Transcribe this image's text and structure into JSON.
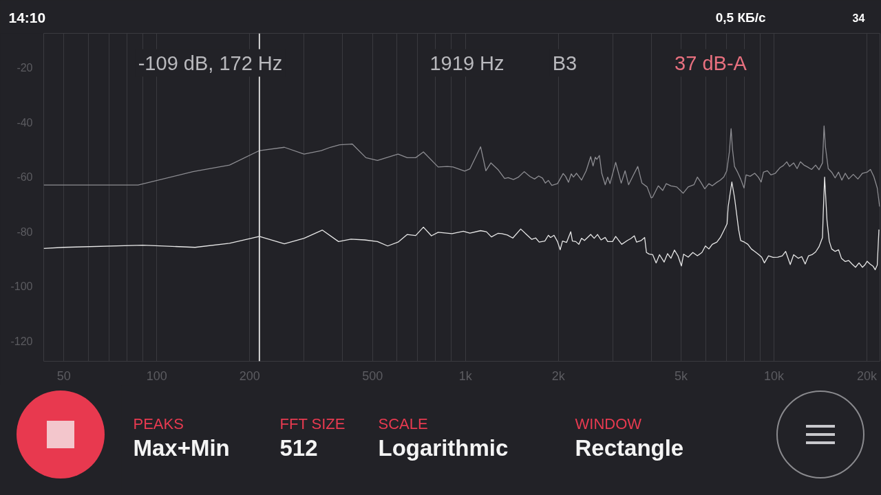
{
  "chart_data": {
    "type": "line",
    "log": "x",
    "grid": "x",
    "xlim": [
      43,
      22050
    ],
    "ylim": [
      -127.5,
      -7.5
    ],
    "xticks": [
      50,
      {
        "value": 60,
        "label": null
      },
      {
        "value": 70,
        "label": null
      },
      {
        "value": 80,
        "label": null
      },
      {
        "value": 90,
        "label": null
      },
      100,
      200,
      {
        "value": 300,
        "label": null
      },
      {
        "value": 400,
        "label": null
      },
      500,
      {
        "value": 600,
        "label": null
      },
      {
        "value": 700,
        "label": null
      },
      {
        "value": 800,
        "label": null
      },
      {
        "value": 900,
        "label": null
      },
      {
        "value": 1000,
        "label": "1k"
      },
      {
        "value": 2000,
        "label": "2k"
      },
      {
        "value": 3000,
        "label": null
      },
      {
        "value": 4000,
        "label": null
      },
      {
        "value": 5000,
        "label": "5k"
      },
      {
        "value": 6000,
        "label": null
      },
      {
        "value": 7000,
        "label": null
      },
      {
        "value": 8000,
        "label": null
      },
      {
        "value": 9000,
        "label": null
      },
      {
        "value": 10000,
        "label": "10k"
      },
      {
        "value": 20000,
        "label": "20k"
      }
    ],
    "yticks": [
      -120,
      -100,
      -80,
      -60,
      -40,
      -20
    ],
    "ref_lines": [
      {
        "axis": "x",
        "value": 215,
        "color": "#d6d6d6"
      }
    ],
    "annotations": [
      "14:10",
      "0,5 КБ/с",
      "34",
      "-109 dB, 172 Hz",
      "1919 Hz",
      "B3",
      "37 dB-A",
      "PEAKS",
      "Max+Min",
      "FFT SIZE",
      "512",
      "SCALE",
      "Logarithmic",
      "WINDOW",
      "Rectangle"
    ],
    "series": [
      {
        "color": "#8d8d92",
        "x": [
          43,
          87,
          131,
          172,
          215,
          259,
          300,
          341,
          365,
          391,
          430,
          476,
          519,
          605,
          648,
          690,
          731,
          816,
          874,
          912,
          994,
          1034,
          1120,
          1165,
          1210,
          1274,
          1340,
          1376,
          1431,
          1486,
          1551,
          1619,
          1675,
          1728,
          1778,
          1816,
          1857,
          1905,
          1988,
          2074,
          2111,
          2158,
          2203,
          2240,
          2291,
          2379,
          2462,
          2547,
          2592,
          2636,
          2667,
          2718,
          2766,
          2838,
          2891,
          2942,
          3069,
          3198,
          3292,
          3379,
          3497,
          3619,
          3733,
          3879,
          4000,
          4040,
          4217,
          4360,
          4475,
          4634,
          4838,
          5076,
          5272,
          5503,
          5646,
          5794,
          5965,
          6151,
          6310,
          6531,
          6700,
          6875,
          7030,
          7172,
          7261,
          7337,
          7448,
          7621,
          7798,
          7998,
          8120,
          8370,
          8660,
          8893,
          9085,
          9245,
          9520,
          9770,
          10100,
          10450,
          10720,
          11000,
          11230,
          11580,
          11880,
          12180,
          12500,
          12840,
          13240,
          13640,
          13990,
          14360,
          14530,
          14680,
          14990,
          15380,
          15780,
          16190,
          16590,
          17020,
          17460,
          18070,
          18700,
          19350,
          20030,
          20540,
          21060,
          21610,
          21990
        ],
        "values": [
          -63,
          -63,
          -58.1,
          -55.7,
          -50.4,
          -49.2,
          -51.7,
          -50.4,
          -49.2,
          -48.3,
          -48.0,
          -53.0,
          -54.0,
          -51.7,
          -53.0,
          -53.0,
          -50.9,
          -56.4,
          -56.2,
          -56.4,
          -57.9,
          -57.1,
          -49.0,
          -57.8,
          -54.9,
          -57.3,
          -60.6,
          -60.3,
          -61.0,
          -60.1,
          -58.1,
          -59.9,
          -60.8,
          -59.7,
          -60.5,
          -62.3,
          -61.3,
          -63.1,
          -62.5,
          -58.8,
          -59.8,
          -62.0,
          -58.9,
          -60.1,
          -58.7,
          -61.2,
          -57.8,
          -52.6,
          -56.0,
          -52.8,
          -53.6,
          -52.2,
          -58.7,
          -62.9,
          -60.1,
          -62.5,
          -54.7,
          -62.3,
          -57.8,
          -62.9,
          -59.5,
          -56.2,
          -62.3,
          -63.7,
          -67.7,
          -67.5,
          -63.3,
          -65.0,
          -62.5,
          -63.3,
          -63.7,
          -66.0,
          -63.7,
          -62.9,
          -60.1,
          -62.0,
          -64.4,
          -62.5,
          -63.3,
          -62.0,
          -61.2,
          -60.1,
          -57.8,
          -50.7,
          -42.4,
          -49.9,
          -56.2,
          -58.3,
          -60.8,
          -64.1,
          -59.3,
          -59.8,
          -58.7,
          -60.1,
          -61.9,
          -58.3,
          -57.8,
          -59.3,
          -58.7,
          -56.7,
          -55.9,
          -54.5,
          -56.2,
          -54.9,
          -57.0,
          -54.5,
          -55.7,
          -56.4,
          -57.3,
          -55.7,
          -57.4,
          -54.9,
          -41.4,
          -49.0,
          -57.0,
          -58.3,
          -60.4,
          -58.3,
          -61.2,
          -58.7,
          -60.8,
          -59.1,
          -60.8,
          -58.7,
          -58.3,
          -57.3,
          -59.9,
          -64.1,
          -70.9
        ]
      },
      {
        "color": "#e8e8e8",
        "x": [
          43,
          50,
          90,
          133,
          172,
          215,
          259,
          300,
          344,
          388,
          426,
          472,
          519,
          560,
          605,
          648,
          690,
          731,
          776,
          816,
          905,
          985,
          1034,
          1120,
          1170,
          1214,
          1274,
          1313,
          1368,
          1424,
          1511,
          1577,
          1641,
          1690,
          1734,
          1809,
          1857,
          1888,
          1937,
          1988,
          2028,
          2064,
          2128,
          2195,
          2222,
          2280,
          2331,
          2379,
          2432,
          2547,
          2614,
          2680,
          2751,
          2838,
          2891,
          2998,
          3069,
          3210,
          3350,
          3436,
          3527,
          3587,
          3713,
          3809,
          3861,
          3941,
          4045,
          4150,
          4256,
          4405,
          4519,
          4634,
          4759,
          4884,
          5011,
          5095,
          5272,
          5458,
          5646,
          5841,
          5995,
          6151,
          6310,
          6531,
          6700,
          6875,
          7046,
          7104,
          7302,
          7448,
          7680,
          7798,
          8020,
          8230,
          8445,
          8660,
          8893,
          9120,
          9310,
          9600,
          9935,
          10280,
          10640,
          10910,
          11290,
          11580,
          11990,
          12300,
          12620,
          12940,
          13280,
          13640,
          13990,
          14360,
          14440,
          14590,
          14850,
          15100,
          15380,
          15780,
          16190,
          16540,
          17020,
          17460,
          17900,
          18370,
          18860,
          19350,
          19680,
          20030,
          20470,
          20940,
          21280,
          21610,
          21880
        ],
        "values": [
          -86.2,
          -85.8,
          -85.0,
          -85.8,
          -84.3,
          -81.8,
          -84.5,
          -82.5,
          -79.5,
          -83.7,
          -82.8,
          -83.1,
          -83.7,
          -85.3,
          -83.9,
          -81.1,
          -81.5,
          -78.4,
          -81.6,
          -80.3,
          -80.8,
          -79.9,
          -80.6,
          -79.7,
          -80.1,
          -82.0,
          -80.7,
          -80.8,
          -81.3,
          -82.4,
          -79.1,
          -81.1,
          -82.9,
          -82.4,
          -83.9,
          -83.5,
          -81.4,
          -82.2,
          -81.4,
          -83.7,
          -86.7,
          -83.5,
          -84.0,
          -80.1,
          -83.5,
          -83.7,
          -84.7,
          -82.5,
          -83.3,
          -81.1,
          -82.5,
          -81.1,
          -83.1,
          -82.2,
          -83.7,
          -83.7,
          -81.8,
          -84.7,
          -83.3,
          -82.6,
          -81.6,
          -83.9,
          -83.3,
          -82.2,
          -87.7,
          -88.3,
          -88.5,
          -91.5,
          -88.5,
          -91.2,
          -88.1,
          -89.8,
          -86.8,
          -88.9,
          -92.6,
          -88.3,
          -89.4,
          -87.7,
          -88.9,
          -87.7,
          -85.3,
          -86.4,
          -84.7,
          -83.9,
          -82.2,
          -79.7,
          -77.2,
          -70.9,
          -61.9,
          -67.5,
          -79.3,
          -83.3,
          -83.9,
          -84.7,
          -86.4,
          -87.3,
          -88.3,
          -89.4,
          -91.5,
          -88.9,
          -89.5,
          -89.4,
          -88.9,
          -87.3,
          -92.1,
          -88.5,
          -89.8,
          -89.2,
          -91.9,
          -88.9,
          -88.5,
          -87.5,
          -85.6,
          -82.2,
          -73.4,
          -60.1,
          -75.9,
          -83.5,
          -86.4,
          -87.3,
          -86.7,
          -89.8,
          -91.0,
          -90.6,
          -91.9,
          -93.1,
          -91.5,
          -93.1,
          -92.3,
          -90.9,
          -91.9,
          -92.7,
          -94.0,
          -92.3,
          -79.3
        ]
      }
    ]
  }
}
